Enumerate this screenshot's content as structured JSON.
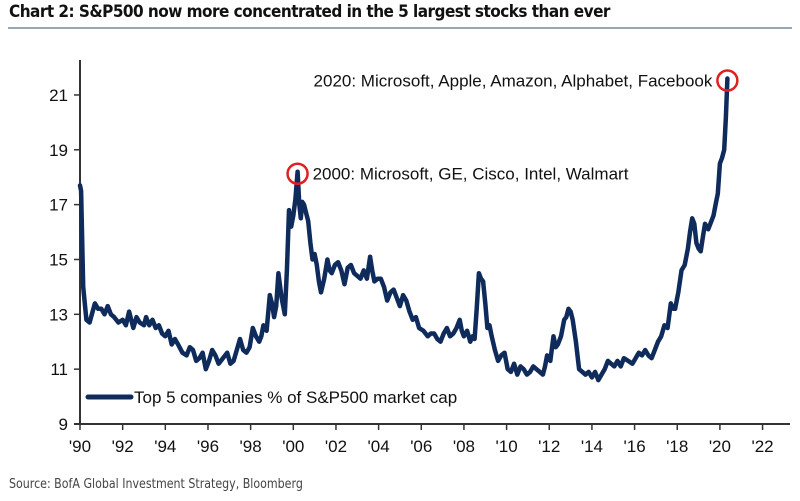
{
  "title": "Chart 2:  S&P500 now more concentrated in the 5 largest stocks than ever",
  "source": "Source:  BofA Global Investment Strategy, Bloomberg",
  "colors": {
    "series": "#0f2b5b",
    "highlight": "#e02020",
    "axis": "#333333"
  },
  "chart_data": {
    "type": "line",
    "title": "Chart 2:  S&P500 now more concentrated in the 5 largest stocks than ever",
    "xlabel": "",
    "ylabel": "",
    "xlim": [
      1990,
      2023.5
    ],
    "ylim": [
      9,
      22.5
    ],
    "x_ticks": [
      1990,
      1992,
      1994,
      1996,
      1998,
      2000,
      2002,
      2004,
      2006,
      2008,
      2010,
      2012,
      2014,
      2016,
      2018,
      2020,
      2022
    ],
    "x_tick_labels": [
      "'90",
      "'92",
      "'94",
      "'96",
      "'98",
      "'00",
      "'02",
      "'04",
      "'06",
      "'08",
      "'10",
      "'12",
      "'14",
      "'16",
      "'18",
      "'20",
      "'22"
    ],
    "y_ticks": [
      9,
      11,
      13,
      15,
      17,
      19,
      21
    ],
    "y_tick_labels": [
      "9",
      "11",
      "13",
      "15",
      "17",
      "19",
      "21"
    ],
    "grid": false,
    "legend": {
      "position": "bottom-left",
      "entries": [
        "Top 5 companies % of S&P500 market cap"
      ]
    },
    "series": [
      {
        "name": "Top 5 companies % of S&P500 market cap",
        "x": [
          1990.0,
          1990.05,
          1990.15,
          1990.3,
          1990.45,
          1990.7,
          1990.85,
          1991.0,
          1991.15,
          1991.3,
          1991.45,
          1991.6,
          1991.8,
          1992.0,
          1992.15,
          1992.3,
          1992.5,
          1992.65,
          1992.8,
          1993.0,
          1993.1,
          1993.25,
          1993.4,
          1993.55,
          1993.7,
          1993.85,
          1994.0,
          1994.15,
          1994.3,
          1994.45,
          1994.6,
          1994.8,
          1995.0,
          1995.15,
          1995.3,
          1995.45,
          1995.6,
          1995.75,
          1995.9,
          1996.05,
          1996.2,
          1996.35,
          1996.5,
          1996.7,
          1996.9,
          1997.05,
          1997.2,
          1997.35,
          1997.5,
          1997.65,
          1997.8,
          1997.95,
          1998.1,
          1998.25,
          1998.4,
          1998.5,
          1998.6,
          1998.75,
          1998.9,
          1999.0,
          1999.1,
          1999.2,
          1999.3,
          1999.45,
          1999.6,
          1999.7,
          1999.8,
          1999.9,
          2000.0,
          2000.1,
          2000.2,
          2000.28,
          2000.35,
          2000.42,
          2000.5,
          2000.6,
          2000.7,
          2000.8,
          2000.9,
          2001.0,
          2001.1,
          2001.2,
          2001.3,
          2001.45,
          2001.6,
          2001.7,
          2001.8,
          2001.95,
          2002.1,
          2002.25,
          2002.4,
          2002.55,
          2002.7,
          2002.85,
          2003.0,
          2003.15,
          2003.3,
          2003.45,
          2003.6,
          2003.7,
          2003.8,
          2003.95,
          2004.1,
          2004.25,
          2004.4,
          2004.55,
          2004.7,
          2004.85,
          2005.0,
          2005.15,
          2005.3,
          2005.45,
          2005.6,
          2005.75,
          2005.9,
          2006.1,
          2006.3,
          2006.45,
          2006.6,
          2006.75,
          2006.9,
          2007.05,
          2007.2,
          2007.35,
          2007.5,
          2007.65,
          2007.8,
          2007.9,
          2008.0,
          2008.15,
          2008.3,
          2008.4,
          2008.5,
          2008.6,
          2008.7,
          2008.8,
          2008.9,
          2009.0,
          2009.1,
          2009.2,
          2009.3,
          2009.45,
          2009.6,
          2009.75,
          2009.9,
          2010.05,
          2010.2,
          2010.35,
          2010.5,
          2010.65,
          2010.8,
          2010.95,
          2011.1,
          2011.25,
          2011.4,
          2011.55,
          2011.7,
          2011.8,
          2011.9,
          2012.05,
          2012.2,
          2012.3,
          2012.4,
          2012.55,
          2012.7,
          2012.8,
          2012.9,
          2013.0,
          2013.1,
          2013.25,
          2013.4,
          2013.55,
          2013.7,
          2013.85,
          2014.0,
          2014.15,
          2014.3,
          2014.45,
          2014.6,
          2014.75,
          2014.9,
          2015.05,
          2015.2,
          2015.35,
          2015.5,
          2015.7,
          2015.9,
          2016.05,
          2016.2,
          2016.35,
          2016.5,
          2016.65,
          2016.8,
          2016.95,
          2017.1,
          2017.25,
          2017.4,
          2017.55,
          2017.7,
          2017.8,
          2017.9,
          2018.05,
          2018.2,
          2018.35,
          2018.5,
          2018.6,
          2018.7,
          2018.8,
          2018.9,
          2019.0,
          2019.1,
          2019.2,
          2019.3,
          2019.45,
          2019.6,
          2019.7,
          2019.8,
          2019.9,
          2020.0,
          2020.1,
          2020.2,
          2020.28,
          2020.35
        ],
        "values": [
          17.7,
          17.5,
          14.0,
          12.8,
          12.7,
          13.4,
          13.2,
          13.2,
          13.0,
          13.3,
          13.0,
          12.9,
          12.7,
          12.8,
          12.6,
          13.1,
          12.5,
          12.9,
          12.7,
          12.6,
          12.9,
          12.6,
          12.8,
          12.5,
          12.6,
          12.3,
          12.2,
          12.4,
          11.9,
          12.1,
          11.9,
          11.6,
          11.5,
          11.8,
          11.7,
          11.3,
          11.4,
          11.6,
          11.0,
          11.3,
          11.7,
          11.5,
          11.2,
          11.4,
          11.6,
          11.2,
          11.3,
          11.7,
          12.1,
          11.7,
          11.6,
          11.8,
          12.5,
          12.2,
          12.0,
          12.2,
          12.6,
          12.4,
          13.7,
          13.4,
          12.9,
          13.3,
          14.5,
          13.6,
          13.0,
          14.6,
          16.8,
          16.2,
          16.6,
          17.2,
          18.2,
          17.0,
          16.5,
          17.1,
          17.0,
          16.7,
          16.4,
          15.6,
          15.0,
          15.2,
          14.8,
          14.2,
          13.8,
          14.3,
          15.0,
          14.6,
          14.5,
          14.8,
          14.9,
          14.6,
          14.1,
          14.7,
          14.8,
          14.5,
          14.4,
          14.3,
          14.6,
          14.3,
          15.1,
          14.6,
          14.2,
          14.3,
          14.3,
          14.0,
          13.5,
          13.8,
          13.9,
          13.6,
          13.3,
          13.7,
          13.5,
          13.1,
          12.8,
          12.9,
          12.5,
          12.4,
          12.2,
          12.3,
          12.3,
          12.1,
          12.0,
          12.3,
          12.5,
          12.2,
          12.3,
          12.5,
          12.8,
          12.4,
          12.2,
          12.4,
          12.0,
          12.2,
          12.1,
          13.2,
          14.5,
          14.3,
          14.2,
          13.4,
          12.5,
          12.6,
          12.2,
          11.7,
          11.3,
          11.5,
          11.6,
          11.0,
          10.9,
          11.2,
          10.8,
          11.1,
          11.0,
          10.8,
          10.9,
          11.1,
          11.0,
          10.9,
          10.8,
          11.1,
          11.5,
          11.3,
          12.2,
          11.8,
          11.9,
          12.2,
          12.8,
          12.9,
          13.2,
          13.1,
          12.8,
          12.0,
          11.0,
          10.9,
          10.8,
          10.9,
          10.7,
          10.9,
          10.6,
          10.8,
          11.0,
          11.3,
          11.2,
          11.1,
          11.3,
          11.1,
          11.4,
          11.3,
          11.2,
          11.4,
          11.6,
          11.5,
          11.7,
          11.5,
          11.4,
          11.7,
          12.0,
          12.2,
          12.6,
          12.5,
          13.4,
          13.2,
          13.2,
          13.8,
          14.6,
          14.8,
          15.4,
          16.0,
          16.5,
          16.3,
          15.6,
          15.4,
          15.3,
          15.8,
          16.3,
          16.1,
          16.4,
          16.6,
          17.0,
          17.4,
          18.5,
          18.7,
          19.0,
          20.2,
          21.6
        ]
      }
    ],
    "annotations": [
      {
        "text": "2000: Microsoft, GE, Cisco, Intel, Walmart",
        "x": 2000.2,
        "y": 18.2,
        "marker": "red-circle"
      },
      {
        "text": "2020: Microsoft, Apple, Amazon, Alphabet, Facebook",
        "x": 2020.35,
        "y": 21.6,
        "marker": "red-circle"
      }
    ]
  }
}
